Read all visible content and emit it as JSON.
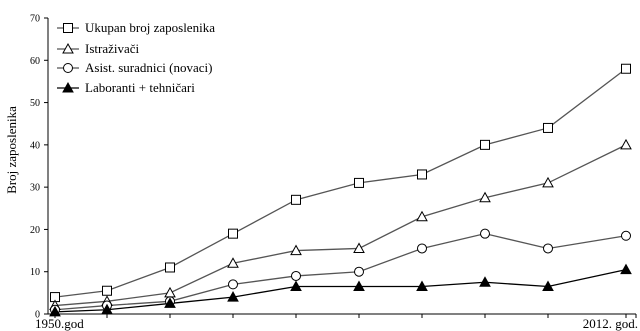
{
  "chart_data": {
    "type": "line",
    "ylabel": "Broj zaposlenika",
    "ylim": [
      0,
      70
    ],
    "yticks": [
      "0",
      "10",
      "20",
      "30",
      "40",
      "50",
      "60",
      "70"
    ],
    "ytick_values": [
      0,
      10,
      20,
      30,
      40,
      50,
      60,
      70
    ],
    "x": [
      1,
      2,
      3,
      4,
      5,
      6,
      7,
      8,
      9,
      10,
      11
    ],
    "xtick_labels": [
      {
        "label": "1950.god",
        "x": 1
      },
      {
        "label": "2012. god.",
        "x": 11
      }
    ],
    "grid": false,
    "legend_position": "top-left",
    "series": [
      {
        "name": "Ukupan broj zaposlenika",
        "marker": "square-open",
        "values": [
          4,
          5.5,
          11,
          19,
          27,
          31,
          33,
          40,
          44,
          58,
          null
        ]
      },
      {
        "name": "Istraživači",
        "marker": "triangle-open",
        "values": [
          2,
          3,
          5,
          12,
          15,
          15.5,
          23,
          27.5,
          31,
          40,
          null
        ]
      },
      {
        "name": "Asist. suradnici (novaci)",
        "marker": "circle-open",
        "values": [
          1,
          2,
          3,
          7,
          9,
          10,
          15.5,
          19,
          15.5,
          18.5,
          null
        ]
      },
      {
        "name": "Laboranti + tehničari",
        "marker": "triangle-filled",
        "values": [
          0.5,
          1,
          2.5,
          4,
          6.5,
          6.5,
          6.5,
          7.5,
          6.5,
          10.5,
          null
        ]
      }
    ]
  }
}
